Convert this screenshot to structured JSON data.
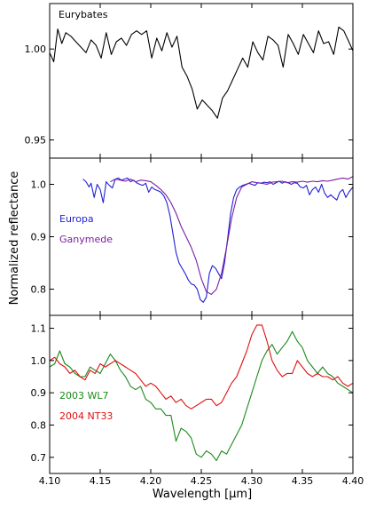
{
  "figure": {
    "ylabel": "Normalized reflectance",
    "xlabel": "Wavelength [μm]",
    "xlim": [
      4.1,
      4.4
    ],
    "xticks": [
      "4.10",
      "4.15",
      "4.20",
      "4.25",
      "4.30",
      "4.35",
      "4.40"
    ]
  },
  "chart_data": [
    {
      "type": "line",
      "title": "",
      "annotation": "Eurybates",
      "ylim": [
        0.94,
        1.025
      ],
      "yticks": [
        "0.95",
        "1.00"
      ],
      "ytick_values": [
        0.95,
        1.0
      ],
      "series": [
        {
          "name": "",
          "color": "#000000",
          "x": [
            4.1,
            4.104,
            4.108,
            4.112,
            4.116,
            4.121,
            4.126,
            4.131,
            4.136,
            4.141,
            4.146,
            4.151,
            4.156,
            4.161,
            4.166,
            4.171,
            4.176,
            4.181,
            4.186,
            4.191,
            4.196,
            4.201,
            4.206,
            4.211,
            4.216,
            4.221,
            4.226,
            4.231,
            4.236,
            4.241,
            4.246,
            4.251,
            4.256,
            4.261,
            4.266,
            4.271,
            4.276,
            4.281,
            4.286,
            4.291,
            4.296,
            4.301,
            4.306,
            4.311,
            4.316,
            4.321,
            4.326,
            4.331,
            4.336,
            4.341,
            4.346,
            4.351,
            4.356,
            4.361,
            4.366,
            4.371,
            4.376,
            4.381,
            4.386,
            4.391,
            4.396,
            4.4
          ],
          "y": [
            0.998,
            0.993,
            1.011,
            1.003,
            1.009,
            1.007,
            1.004,
            1.001,
            0.998,
            1.005,
            1.002,
            0.995,
            1.009,
            0.997,
            1.004,
            1.006,
            1.002,
            1.008,
            1.01,
            1.008,
            1.01,
            0.995,
            1.006,
            0.999,
            1.009,
            1.001,
            1.007,
            0.99,
            0.985,
            0.978,
            0.967,
            0.972,
            0.969,
            0.966,
            0.962,
            0.973,
            0.977,
            0.983,
            0.989,
            0.995,
            0.99,
            1.004,
            0.998,
            0.994,
            1.007,
            1.005,
            1.002,
            0.99,
            1.008,
            1.003,
            0.997,
            1.008,
            1.003,
            0.998,
            1.01,
            1.003,
            1.004,
            0.997,
            1.012,
            1.01,
            1.004,
            0.999
          ]
        }
      ]
    },
    {
      "type": "line",
      "title": "",
      "ylim": [
        0.75,
        1.05
      ],
      "yticks": [
        "0.8",
        "0.9",
        "1.0"
      ],
      "ytick_values": [
        0.8,
        0.9,
        1.0
      ],
      "series": [
        {
          "name": "Europa",
          "color": "#1f1fd6",
          "x": [
            4.133,
            4.136,
            4.139,
            4.141,
            4.144,
            4.147,
            4.15,
            4.153,
            4.156,
            4.159,
            4.162,
            4.165,
            4.168,
            4.171,
            4.174,
            4.177,
            4.18,
            4.183,
            4.186,
            4.189,
            4.192,
            4.195,
            4.198,
            4.201,
            4.204,
            4.207,
            4.21,
            4.213,
            4.216,
            4.219,
            4.222,
            4.225,
            4.228,
            4.231,
            4.234,
            4.237,
            4.24,
            4.243,
            4.246,
            4.249,
            4.252,
            4.255,
            4.258,
            4.261,
            4.264,
            4.267,
            4.27,
            4.273,
            4.276,
            4.279,
            4.282,
            4.285,
            4.288,
            4.291,
            4.294,
            4.297,
            4.3,
            4.303,
            4.306,
            4.309,
            4.312,
            4.315,
            4.318,
            4.321,
            4.324,
            4.327,
            4.33,
            4.333,
            4.336,
            4.339,
            4.342,
            4.345,
            4.348,
            4.351,
            4.354,
            4.357,
            4.36,
            4.363,
            4.366,
            4.369,
            4.372,
            4.375,
            4.378,
            4.381,
            4.384,
            4.387,
            4.39,
            4.393,
            4.396,
            4.4
          ],
          "y": [
            1.01,
            1.005,
            0.995,
            1.002,
            0.975,
            1.0,
            0.99,
            0.965,
            1.005,
            0.998,
            0.993,
            1.01,
            1.012,
            1.008,
            1.01,
            1.012,
            1.005,
            1.008,
            1.003,
            1.0,
            0.998,
            1.002,
            0.985,
            0.995,
            0.99,
            0.988,
            0.985,
            0.978,
            0.965,
            0.94,
            0.905,
            0.87,
            0.85,
            0.84,
            0.83,
            0.818,
            0.81,
            0.808,
            0.8,
            0.78,
            0.775,
            0.785,
            0.83,
            0.845,
            0.84,
            0.83,
            0.82,
            0.85,
            0.895,
            0.945,
            0.975,
            0.99,
            0.995,
            0.998,
            1.0,
            1.002,
            1.0,
            0.998,
            1.003,
            1.002,
            1.004,
            1.003,
            1.005,
            1.0,
            1.003,
            1.006,
            1.002,
            1.005,
            1.003,
            1.0,
            1.003,
            1.002,
            0.995,
            0.993,
            0.998,
            0.98,
            0.99,
            0.995,
            0.985,
            1.0,
            0.983,
            0.975,
            0.98,
            0.975,
            0.97,
            0.985,
            0.99,
            0.975,
            0.985,
            0.995
          ]
        },
        {
          "name": "Ganymede",
          "color": "#7a1fa2",
          "x": [
            4.16,
            4.165,
            4.17,
            4.175,
            4.18,
            4.185,
            4.19,
            4.195,
            4.2,
            4.205,
            4.21,
            4.215,
            4.22,
            4.225,
            4.23,
            4.235,
            4.24,
            4.245,
            4.25,
            4.255,
            4.26,
            4.265,
            4.27,
            4.275,
            4.28,
            4.285,
            4.29,
            4.295,
            4.3,
            4.305,
            4.31,
            4.315,
            4.32,
            4.325,
            4.33,
            4.335,
            4.34,
            4.345,
            4.35,
            4.355,
            4.36,
            4.365,
            4.37,
            4.375,
            4.38,
            4.385,
            4.39,
            4.395,
            4.4
          ],
          "y": [
            1.005,
            1.01,
            1.008,
            1.006,
            1.01,
            1.005,
            1.008,
            1.007,
            1.005,
            0.998,
            0.99,
            0.98,
            0.965,
            0.945,
            0.92,
            0.9,
            0.88,
            0.855,
            0.82,
            0.795,
            0.79,
            0.8,
            0.83,
            0.88,
            0.935,
            0.975,
            0.995,
            1.0,
            1.005,
            1.003,
            1.002,
            1.0,
            1.004,
            1.005,
            1.006,
            1.003,
            1.005,
            1.004,
            1.006,
            1.004,
            1.006,
            1.005,
            1.007,
            1.006,
            1.008,
            1.01,
            1.012,
            1.01,
            1.015
          ]
        }
      ]
    },
    {
      "type": "line",
      "title": "",
      "ylim": [
        0.65,
        1.14
      ],
      "yticks": [
        "0.7",
        "0.8",
        "0.9",
        "1.0",
        "1.1"
      ],
      "ytick_values": [
        0.7,
        0.8,
        0.9,
        1.0,
        1.1
      ],
      "series": [
        {
          "name": "2003 WL7",
          "color": "#1a8a1a",
          "x": [
            4.1,
            4.105,
            4.11,
            4.115,
            4.12,
            4.125,
            4.13,
            4.135,
            4.14,
            4.145,
            4.15,
            4.155,
            4.16,
            4.165,
            4.17,
            4.175,
            4.18,
            4.185,
            4.19,
            4.195,
            4.2,
            4.205,
            4.21,
            4.215,
            4.22,
            4.225,
            4.23,
            4.235,
            4.24,
            4.245,
            4.25,
            4.255,
            4.26,
            4.265,
            4.27,
            4.275,
            4.28,
            4.285,
            4.29,
            4.295,
            4.3,
            4.305,
            4.31,
            4.315,
            4.32,
            4.325,
            4.33,
            4.335,
            4.34,
            4.345,
            4.35,
            4.355,
            4.36,
            4.365,
            4.37,
            4.375,
            4.38,
            4.385,
            4.39,
            4.395,
            4.4
          ],
          "y": [
            0.98,
            0.99,
            1.03,
            0.99,
            0.98,
            0.96,
            0.95,
            0.95,
            0.98,
            0.97,
            0.96,
            0.99,
            1.02,
            1.0,
            0.97,
            0.95,
            0.92,
            0.91,
            0.92,
            0.88,
            0.87,
            0.85,
            0.85,
            0.83,
            0.83,
            0.75,
            0.79,
            0.78,
            0.76,
            0.71,
            0.7,
            0.72,
            0.71,
            0.69,
            0.72,
            0.71,
            0.74,
            0.77,
            0.8,
            0.85,
            0.9,
            0.95,
            1.0,
            1.03,
            1.05,
            1.02,
            1.04,
            1.06,
            1.09,
            1.06,
            1.04,
            1.0,
            0.98,
            0.96,
            0.98,
            0.96,
            0.95,
            0.93,
            0.92,
            0.91,
            0.9
          ]
        },
        {
          "name": "2004 NT33",
          "color": "#e01010",
          "x": [
            4.1,
            4.105,
            4.11,
            4.115,
            4.12,
            4.125,
            4.13,
            4.135,
            4.14,
            4.145,
            4.15,
            4.155,
            4.16,
            4.165,
            4.17,
            4.175,
            4.18,
            4.185,
            4.19,
            4.195,
            4.2,
            4.205,
            4.21,
            4.215,
            4.22,
            4.225,
            4.23,
            4.235,
            4.24,
            4.245,
            4.25,
            4.255,
            4.26,
            4.265,
            4.27,
            4.275,
            4.28,
            4.285,
            4.29,
            4.295,
            4.3,
            4.305,
            4.31,
            4.315,
            4.32,
            4.325,
            4.33,
            4.335,
            4.34,
            4.345,
            4.35,
            4.355,
            4.36,
            4.365,
            4.37,
            4.375,
            4.38,
            4.385,
            4.39,
            4.395,
            4.4
          ],
          "y": [
            1.0,
            1.01,
            0.99,
            0.98,
            0.96,
            0.97,
            0.95,
            0.94,
            0.97,
            0.96,
            0.99,
            0.98,
            0.99,
            1.0,
            0.99,
            0.98,
            0.97,
            0.96,
            0.94,
            0.92,
            0.93,
            0.92,
            0.9,
            0.88,
            0.89,
            0.87,
            0.88,
            0.86,
            0.85,
            0.86,
            0.87,
            0.88,
            0.88,
            0.86,
            0.87,
            0.9,
            0.93,
            0.95,
            0.99,
            1.03,
            1.08,
            1.11,
            1.11,
            1.06,
            1.0,
            0.97,
            0.95,
            0.96,
            0.96,
            1.0,
            0.98,
            0.96,
            0.95,
            0.96,
            0.95,
            0.95,
            0.94,
            0.95,
            0.93,
            0.92,
            0.93
          ]
        }
      ]
    }
  ]
}
